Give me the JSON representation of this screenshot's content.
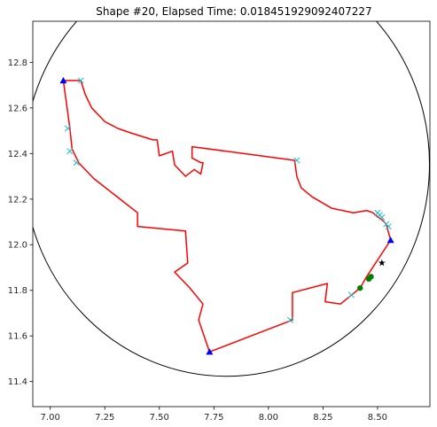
{
  "chart_data": {
    "type": "scatter",
    "title": "Shape #20, Elapsed Time: 0.018451929092407227",
    "xlabel": "",
    "ylabel": "",
    "xlim": [
      6.92,
      8.74
    ],
    "ylim": [
      11.29,
      12.98
    ],
    "x_ticks": [
      7.0,
      7.25,
      7.5,
      7.75,
      8.0,
      8.25,
      8.5
    ],
    "x_tick_labels": [
      "7.00",
      "7.25",
      "7.50",
      "7.75",
      "8.00",
      "8.25",
      "8.50"
    ],
    "y_ticks": [
      11.4,
      11.6,
      11.8,
      12.0,
      12.2,
      12.4,
      12.6,
      12.8
    ],
    "y_tick_labels": [
      "11.4",
      "11.6",
      "11.8",
      "12.0",
      "12.2",
      "12.4",
      "12.6",
      "12.8"
    ],
    "grid": false,
    "colors": {
      "circle": "#000000",
      "shape": "#ff0000",
      "cross": "#17becf",
      "vertex": "#0000ff",
      "green": "#008000",
      "star": "#000000",
      "axes": "#000000",
      "ticks": "#262626"
    },
    "circle": {
      "cx": 7.808,
      "cy": 12.353,
      "r": 0.93
    },
    "shape_polygon": {
      "name": "shape",
      "x": [
        7.06,
        7.14,
        7.16,
        7.19,
        7.25,
        7.31,
        7.37,
        7.47,
        7.49,
        7.5,
        7.56,
        7.56,
        7.57,
        7.62,
        7.66,
        7.69,
        7.7,
        7.69,
        7.65,
        7.65,
        8.12,
        8.13,
        8.15,
        8.2,
        8.29,
        8.39,
        8.45,
        8.48,
        8.49,
        8.52,
        8.54,
        8.56,
        8.45,
        8.42,
        8.33,
        8.26,
        8.27,
        8.11,
        8.11,
        7.73,
        7.68,
        7.7,
        7.64,
        7.57,
        7.63,
        7.62,
        7.4,
        7.4,
        7.32,
        7.2,
        7.13,
        7.1,
        7.09,
        7.06
      ],
      "y": [
        12.72,
        12.72,
        12.66,
        12.6,
        12.54,
        12.51,
        12.49,
        12.46,
        12.46,
        12.39,
        12.41,
        12.41,
        12.35,
        12.3,
        12.33,
        12.31,
        12.36,
        12.36,
        12.38,
        12.43,
        12.37,
        12.3,
        12.25,
        12.21,
        12.16,
        12.14,
        12.15,
        12.14,
        12.13,
        12.11,
        12.09,
        12.02,
        11.86,
        11.81,
        11.74,
        11.75,
        11.83,
        11.79,
        11.67,
        11.53,
        11.67,
        11.74,
        11.81,
        11.88,
        11.92,
        12.06,
        12.08,
        12.14,
        12.2,
        12.29,
        12.36,
        12.42,
        12.51,
        12.72
      ]
    },
    "cross_markers": {
      "name": "cross",
      "x": [
        7.14,
        7.08,
        7.09,
        7.12,
        8.13,
        8.51,
        8.5,
        8.52,
        8.54,
        8.55,
        8.38,
        8.1
      ],
      "y": [
        12.72,
        12.51,
        12.41,
        12.36,
        12.37,
        12.13,
        12.14,
        12.12,
        12.09,
        12.08,
        11.78,
        11.67
      ]
    },
    "triangle_markers": {
      "name": "vertex",
      "x": [
        7.06,
        8.56,
        7.73
      ],
      "y": [
        12.72,
        12.02,
        11.53
      ]
    },
    "green_markers": {
      "name": "green",
      "x": [
        8.42,
        8.46,
        8.47
      ],
      "y": [
        11.81,
        11.85,
        11.86
      ]
    },
    "star_markers": {
      "name": "star",
      "x": [
        8.52
      ],
      "y": [
        11.92
      ]
    }
  }
}
